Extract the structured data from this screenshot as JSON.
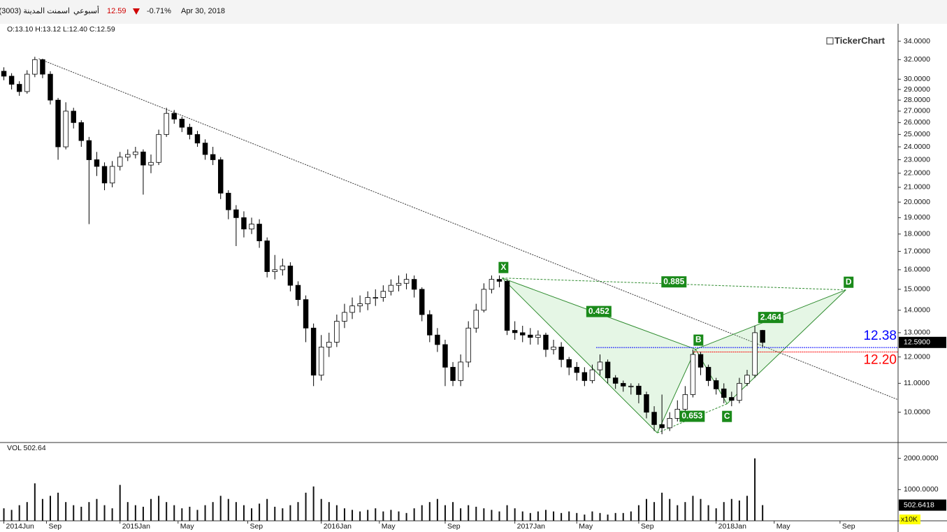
{
  "header": {
    "name": "اسمنت المدينة (3003)",
    "period": "أسبوعي",
    "price": "12.59",
    "change": "-0.71%",
    "date": "Apr 30, 2018",
    "ohlc": "O:13.10 H:13.12 L:12.40 C:12.59",
    "logo": "TickerChart",
    "vol_label": "VOL 502.64",
    "unit": "x10K"
  },
  "chart_data": [
    {
      "type": "candlestick",
      "log": true,
      "color_up": "#ffffff",
      "color_down": "#000000",
      "x": [
        0,
        2,
        4,
        6,
        8,
        10,
        12,
        14,
        16,
        18,
        20,
        22,
        24,
        26,
        28,
        30,
        32,
        34,
        36,
        38,
        40,
        42,
        44,
        46,
        48,
        50,
        52,
        54,
        56,
        58,
        60,
        62,
        64,
        66,
        68,
        70,
        72,
        74,
        76,
        78,
        80,
        82,
        84,
        86,
        88,
        90,
        92,
        94,
        96,
        98,
        100,
        102,
        104,
        106,
        108,
        110,
        112,
        114,
        116,
        118,
        120,
        122,
        124,
        126,
        128,
        130,
        132,
        134,
        136,
        138,
        140,
        142,
        144,
        146,
        148,
        150,
        152,
        154,
        156,
        158,
        160,
        162,
        164,
        166,
        168,
        170,
        172,
        174,
        176,
        178,
        180,
        182,
        184,
        186,
        188,
        190,
        192,
        194,
        196
      ],
      "open": [
        30.8,
        30.3,
        29.5,
        28.8,
        30.5,
        32.0,
        30.5,
        28.0,
        24.0,
        27.0,
        26.0,
        24.5,
        23.0,
        22.5,
        21.3,
        22.5,
        23.2,
        23.4,
        23.6,
        22.6,
        22.8,
        25.0,
        26.8,
        26.3,
        25.6,
        25.0,
        24.3,
        23.4,
        23.0,
        20.6,
        19.5,
        19.0,
        18.3,
        18.6,
        17.6,
        15.9,
        16.0,
        16.2,
        15.2,
        14.5,
        13.2,
        11.3,
        12.4,
        12.6,
        13.5,
        13.9,
        14.2,
        14.3,
        14.6,
        14.6,
        14.9,
        15.2,
        15.3,
        15.5,
        15.0,
        13.8,
        12.9,
        12.5,
        11.6,
        11.1,
        11.8,
        13.2,
        14.0,
        15.0,
        15.5,
        15.4,
        13.1,
        13.0,
        12.9,
        12.8,
        12.9,
        12.3,
        12.4,
        11.9,
        11.6,
        11.4,
        11.1,
        11.5,
        11.8,
        11.2,
        11.0,
        10.9,
        10.9,
        10.6,
        10.0,
        9.6,
        9.5,
        9.8,
        10.1,
        10.6,
        12.1,
        11.6,
        11.1,
        10.8,
        10.5,
        10.4,
        11.0,
        11.3,
        13.1
      ],
      "high": [
        31.2,
        30.6,
        29.8,
        30.9,
        32.3,
        32.1,
        30.8,
        28.2,
        27.8,
        27.3,
        26.2,
        24.8,
        23.6,
        22.8,
        22.9,
        23.6,
        23.8,
        24.0,
        23.8,
        23.4,
        25.4,
        27.3,
        27.1,
        26.5,
        25.9,
        25.3,
        24.6,
        24.0,
        23.2,
        20.8,
        19.8,
        19.4,
        19.0,
        18.9,
        17.8,
        16.8,
        16.6,
        16.4,
        15.4,
        14.7,
        13.4,
        12.9,
        13.0,
        13.8,
        14.3,
        14.6,
        14.7,
        14.9,
        15.0,
        15.2,
        15.5,
        15.7,
        15.8,
        15.7,
        15.1,
        14.0,
        13.2,
        12.7,
        11.8,
        12.1,
        13.5,
        14.3,
        15.3,
        15.7,
        15.7,
        15.5,
        13.5,
        13.3,
        13.2,
        13.1,
        13.0,
        12.7,
        12.6,
        12.0,
        11.8,
        11.6,
        11.7,
        12.1,
        11.9,
        11.3,
        11.1,
        11.0,
        11.0,
        10.7,
        10.2,
        10.6,
        10.0,
        10.4,
        10.9,
        12.3,
        12.2,
        11.7,
        11.2,
        11.0,
        10.7,
        11.2,
        11.5,
        13.3,
        13.12
      ],
      "low": [
        29.9,
        29.0,
        28.4,
        28.6,
        30.2,
        30.1,
        27.6,
        23.0,
        23.8,
        25.5,
        24.0,
        18.6,
        21.8,
        20.8,
        21.0,
        22.2,
        22.9,
        23.1,
        20.5,
        22.0,
        22.6,
        24.8,
        25.9,
        25.2,
        24.6,
        24.0,
        23.0,
        22.6,
        20.2,
        18.9,
        17.3,
        17.8,
        18.0,
        17.2,
        15.6,
        15.5,
        15.7,
        14.9,
        14.2,
        12.6,
        10.9,
        11.1,
        12.0,
        12.4,
        13.2,
        13.6,
        13.9,
        14.0,
        14.2,
        14.4,
        14.7,
        14.9,
        15.0,
        14.6,
        13.5,
        12.6,
        12.2,
        10.9,
        10.9,
        10.9,
        11.6,
        13.0,
        13.9,
        14.8,
        15.1,
        12.9,
        12.7,
        12.6,
        12.5,
        12.5,
        12.0,
        12.1,
        11.6,
        11.3,
        11.1,
        10.9,
        11.0,
        11.3,
        11.0,
        10.8,
        10.7,
        10.6,
        10.3,
        9.8,
        9.4,
        9.3,
        9.4,
        9.7,
        10.0,
        10.5,
        11.3,
        10.9,
        10.6,
        10.3,
        10.2,
        10.3,
        10.9,
        11.2,
        12.4
      ],
      "close": [
        30.3,
        29.5,
        28.8,
        30.5,
        32.0,
        30.5,
        28.0,
        24.0,
        27.0,
        26.0,
        24.5,
        23.0,
        22.5,
        21.3,
        22.5,
        23.2,
        23.4,
        23.6,
        22.6,
        22.8,
        25.0,
        26.8,
        26.3,
        25.6,
        25.0,
        24.3,
        23.4,
        23.0,
        20.6,
        19.5,
        19.0,
        18.3,
        18.6,
        17.6,
        15.9,
        16.0,
        16.2,
        15.2,
        14.5,
        13.2,
        11.3,
        12.4,
        12.6,
        13.5,
        13.9,
        14.2,
        14.3,
        14.6,
        14.6,
        14.9,
        15.2,
        15.3,
        15.5,
        15.0,
        13.8,
        12.9,
        12.5,
        11.6,
        11.1,
        11.8,
        13.2,
        14.0,
        15.0,
        15.5,
        15.4,
        13.1,
        13.0,
        12.9,
        12.8,
        12.9,
        12.3,
        12.4,
        11.9,
        11.6,
        11.4,
        11.1,
        11.5,
        11.8,
        11.2,
        11.0,
        10.9,
        10.9,
        10.6,
        10.0,
        9.6,
        9.5,
        9.8,
        10.1,
        10.6,
        12.1,
        11.6,
        11.1,
        10.8,
        10.5,
        10.4,
        11.0,
        11.3,
        13.0,
        12.59
      ],
      "last_label": "12.5900",
      "xlim": [
        -1,
        231
      ],
      "ylim": [
        9.07,
        35.77
      ],
      "yticks": [
        {
          "value": 10,
          "label": "10.0000"
        },
        {
          "value": 11,
          "label": "11.0000"
        },
        {
          "value": 12,
          "label": "12.0000"
        },
        {
          "value": 13,
          "label": "13.0000"
        },
        {
          "value": 14,
          "label": "14.0000"
        },
        {
          "value": 15,
          "label": "15.0000"
        },
        {
          "value": 16,
          "label": "16.0000"
        },
        {
          "value": 17,
          "label": "17.0000"
        },
        {
          "value": 18,
          "label": "18.0000"
        },
        {
          "value": 19,
          "label": "19.0000"
        },
        {
          "value": 20,
          "label": "20.0000"
        },
        {
          "value": 21,
          "label": "21.0000"
        },
        {
          "value": 22,
          "label": "22.0000"
        },
        {
          "value": 23,
          "label": "23.0000"
        },
        {
          "value": 24,
          "label": "24.0000"
        },
        {
          "value": 25,
          "label": "25.0000"
        },
        {
          "value": 26,
          "label": "26.0000"
        },
        {
          "value": 27,
          "label": "27.0000"
        },
        {
          "value": 28,
          "label": "28.0000"
        },
        {
          "value": 29,
          "label": "29.0000"
        },
        {
          "value": 30,
          "label": "30.0000"
        },
        {
          "value": 32,
          "label": "32.0000"
        },
        {
          "value": 34,
          "label": "34.0000"
        }
      ],
      "trendline": {
        "x": [
          9,
          231.4
        ],
        "y": [
          32.1,
          10.4
        ]
      },
      "levels": [
        {
          "value": 12.38,
          "x": 153,
          "color": "#0000ff"
        },
        {
          "value": 12.2,
          "label": "12.20",
          "x": 178,
          "color": "#ff0000"
        }
      ],
      "pattern": {
        "color": "#2e8b2e",
        "points": [
          {
            "label": "X",
            "x": 128.7,
            "y": 15.57
          },
          {
            "x": 168.8,
            "y": 9.34
          },
          {
            "label": "B",
            "x": 178.7,
            "y": 12.31
          },
          {
            "label": "C",
            "x": 186.8,
            "y": 10.28
          },
          {
            "label": "D",
            "x": 217.5,
            "y": 14.97
          }
        ],
        "ratios": [
          0.452,
          0.885,
          0.653,
          2.464
        ]
      }
    },
    {
      "type": "bar",
      "color": "#111111",
      "values": [
        400,
        350,
        500,
        600,
        1200,
        700,
        800,
        900,
        600,
        500,
        450,
        600,
        700,
        500,
        400,
        1150,
        600,
        500,
        450,
        700,
        800,
        600,
        500,
        400,
        450,
        350,
        500,
        600,
        800,
        700,
        600,
        500,
        400,
        550,
        700,
        450,
        400,
        500,
        600,
        900,
        1100,
        700,
        600,
        500,
        400,
        350,
        300,
        350,
        400,
        300,
        350,
        300,
        250,
        400,
        500,
        600,
        700,
        500,
        600,
        400,
        500,
        450,
        400,
        350,
        300,
        500,
        400,
        300,
        250,
        300,
        350,
        300,
        250,
        300,
        250,
        200,
        300,
        250,
        200,
        250,
        250,
        300,
        500,
        700,
        600,
        900,
        700,
        500,
        600,
        800,
        700,
        500,
        400,
        600,
        700,
        650,
        800,
        2000,
        502.6418
      ],
      "last_label": "502.6418",
      "ylim": [
        0,
        2440
      ],
      "yticks": [
        {
          "value": 1000,
          "label": "1000.0000"
        },
        {
          "value": 2000,
          "label": "2000.0000"
        }
      ],
      "xticks": [
        {
          "value": 0,
          "label": "2014Jun"
        },
        {
          "value": 11,
          "label": "Sep"
        },
        {
          "value": 30,
          "label": "2015Jan"
        },
        {
          "value": 45,
          "label": "May"
        },
        {
          "value": 63,
          "label": "Sep"
        },
        {
          "value": 82,
          "label": "2016Jan"
        },
        {
          "value": 97,
          "label": "May"
        },
        {
          "value": 114,
          "label": "Sep"
        },
        {
          "value": 132,
          "label": "2017Jan"
        },
        {
          "value": 148,
          "label": "May"
        },
        {
          "value": 164,
          "label": "Sep"
        },
        {
          "value": 184,
          "label": "2018Jan"
        },
        {
          "value": 199,
          "label": "May"
        },
        {
          "value": 216,
          "label": "Sep"
        }
      ]
    }
  ]
}
